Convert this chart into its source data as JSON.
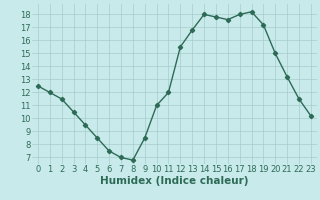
{
  "title": "",
  "xlabel": "Humidex (Indice chaleur)",
  "ylabel": "",
  "x": [
    0,
    1,
    2,
    3,
    4,
    5,
    6,
    7,
    8,
    9,
    10,
    11,
    12,
    13,
    14,
    15,
    16,
    17,
    18,
    19,
    20,
    21,
    22,
    23
  ],
  "y": [
    12.5,
    12.0,
    11.5,
    10.5,
    9.5,
    8.5,
    7.5,
    7.0,
    6.8,
    8.5,
    11.0,
    12.0,
    15.5,
    16.8,
    18.0,
    17.8,
    17.6,
    18.0,
    18.2,
    17.2,
    15.0,
    13.2,
    11.5,
    10.2
  ],
  "line_color": "#2e6b57",
  "marker": "D",
  "marker_size": 2.2,
  "bg_color": "#c8eaea",
  "grid_color": "#a8cccc",
  "ylim": [
    6.5,
    18.8
  ],
  "xlim": [
    -0.5,
    23.5
  ],
  "yticks": [
    7,
    8,
    9,
    10,
    11,
    12,
    13,
    14,
    15,
    16,
    17,
    18
  ],
  "xticks": [
    0,
    1,
    2,
    3,
    4,
    5,
    6,
    7,
    8,
    9,
    10,
    11,
    12,
    13,
    14,
    15,
    16,
    17,
    18,
    19,
    20,
    21,
    22,
    23
  ],
  "tick_color": "#2e6b57",
  "xlabel_color": "#2e6b57",
  "xlabel_fontsize": 7.5,
  "tick_fontsize": 6,
  "line_width": 1.0
}
